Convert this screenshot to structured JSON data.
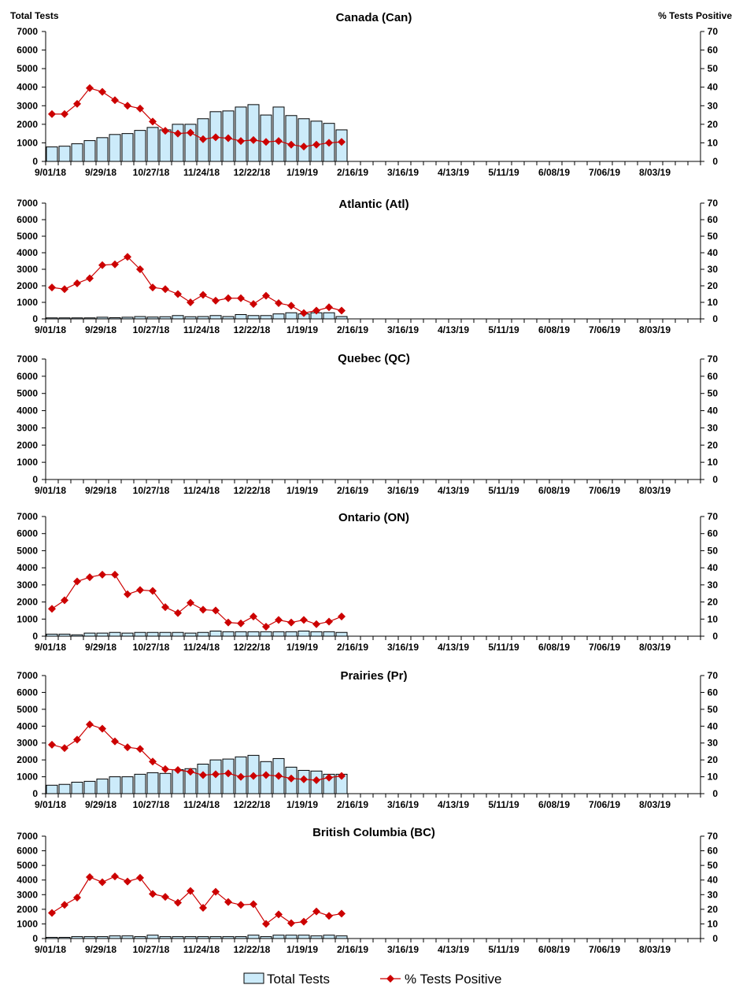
{
  "chart_data": {
    "type": "bar+line",
    "left_axis_title": "Total Tests",
    "right_axis_title": "% Tests Positive",
    "left_ylim": [
      0,
      7000
    ],
    "left_yticks": [
      0,
      1000,
      2000,
      3000,
      4000,
      5000,
      6000,
      7000
    ],
    "right_ylim": [
      0,
      70
    ],
    "right_yticks": [
      0,
      10,
      20,
      30,
      40,
      50,
      60,
      70
    ],
    "x_tick_labels": [
      "9/01/18",
      "9/29/18",
      "10/27/18",
      "11/24/18",
      "12/22/18",
      "1/19/19",
      "2/16/19",
      "3/16/19",
      "4/13/19",
      "5/11/19",
      "6/08/19",
      "7/06/19",
      "8/03/19"
    ],
    "weeks_on_axis": 52,
    "legend": {
      "bars": "Total Tests",
      "line": "% Tests Positive",
      "placement": "bottom"
    },
    "colors": {
      "bar_fill": "#CCEBFA",
      "bar_stroke": "#000000",
      "line": "#CC0000"
    },
    "panels": [
      {
        "title": "Canada (Can)",
        "total_tests": [
          780,
          820,
          950,
          1120,
          1280,
          1450,
          1500,
          1670,
          1830,
          1700,
          2000,
          2000,
          2300,
          2680,
          2720,
          2930,
          3060,
          2500,
          2930,
          2470,
          2300,
          2170,
          2050,
          1700
        ],
        "pct_positive": [
          25.5,
          25.5,
          31,
          39.5,
          37.5,
          33,
          30,
          28.5,
          21.5,
          16.5,
          15,
          15.5,
          12,
          13,
          12.5,
          11,
          11.5,
          10.5,
          11,
          9,
          8,
          9,
          10,
          10.5
        ]
      },
      {
        "title": "Atlantic (Atl)",
        "total_tests": [
          60,
          60,
          60,
          60,
          100,
          70,
          100,
          140,
          110,
          130,
          200,
          130,
          140,
          200,
          140,
          260,
          200,
          200,
          300,
          370,
          300,
          370,
          370,
          140
        ],
        "pct_positive": [
          19,
          18,
          21.5,
          24.5,
          32.5,
          33,
          37.5,
          30,
          19,
          18,
          15,
          10,
          14.5,
          11,
          12.5,
          12.5,
          9,
          14,
          9.5,
          8,
          3.5,
          5,
          7,
          5
        ]
      },
      {
        "title": "Quebec (QC)",
        "total_tests": [],
        "pct_positive": []
      },
      {
        "title": "Ontario (ON)",
        "total_tests": [
          120,
          120,
          80,
          180,
          180,
          220,
          180,
          220,
          220,
          220,
          220,
          180,
          220,
          300,
          260,
          260,
          260,
          260,
          260,
          260,
          300,
          260,
          260,
          220
        ],
        "pct_positive": [
          16,
          21,
          32,
          34.5,
          36,
          36,
          24.5,
          27,
          26.5,
          17,
          13.5,
          19.5,
          15.5,
          15,
          8,
          7.5,
          11.5,
          5.5,
          9.5,
          8,
          9.5,
          7,
          8.5,
          11.5
        ]
      },
      {
        "title": "Prairies (Pr)",
        "total_tests": [
          500,
          550,
          680,
          730,
          870,
          1000,
          1000,
          1150,
          1240,
          1200,
          1420,
          1480,
          1750,
          2000,
          2050,
          2180,
          2270,
          1900,
          2080,
          1570,
          1380,
          1340,
          1150,
          1150
        ],
        "pct_positive": [
          29,
          27,
          32,
          41,
          38.5,
          31,
          27.5,
          26.5,
          19,
          14.5,
          14,
          13,
          11,
          11.5,
          12,
          10,
          10.5,
          11,
          10.5,
          9,
          8.5,
          8,
          9.5,
          10.5
        ]
      },
      {
        "title": "British Columbia (BC)",
        "total_tests": [
          80,
          80,
          130,
          130,
          130,
          180,
          180,
          130,
          230,
          130,
          130,
          130,
          130,
          130,
          130,
          130,
          230,
          130,
          230,
          230,
          230,
          180,
          230,
          180
        ],
        "pct_positive": [
          17.5,
          23,
          28,
          42,
          38.5,
          42.5,
          39,
          41.5,
          30.5,
          28.5,
          24.5,
          32.5,
          21,
          32,
          25,
          23,
          23.5,
          10,
          16.5,
          10.5,
          11.5,
          18.5,
          15.5,
          17
        ]
      }
    ]
  }
}
